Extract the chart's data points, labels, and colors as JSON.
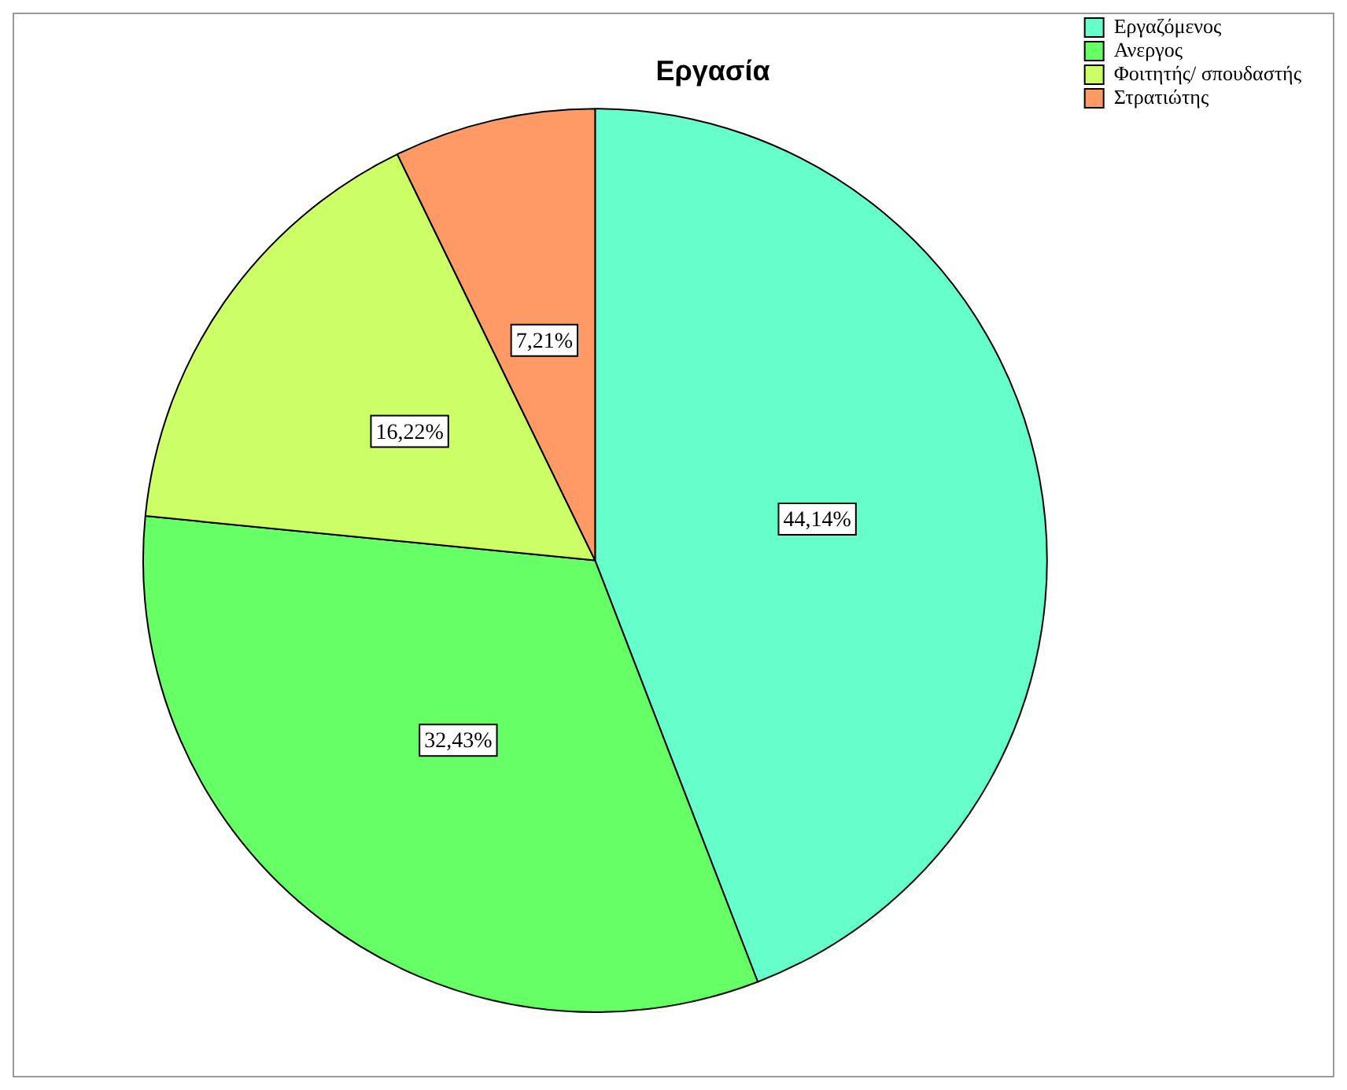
{
  "chart_data": {
    "type": "pie",
    "title": "Εργασία",
    "categories": [
      "Εργαζόμενος",
      "Ανεργος",
      "Φοιτητής/ σπουδαστής",
      "Στρατιώτης"
    ],
    "values": [
      44.14,
      32.43,
      16.22,
      7.21
    ],
    "value_labels": [
      "44,14%",
      "32,43%",
      "16,22%",
      "7,21%"
    ],
    "colors": [
      "#66ffcc",
      "#66ff66",
      "#ccff66",
      "#ff9966"
    ],
    "legend": "top right"
  }
}
